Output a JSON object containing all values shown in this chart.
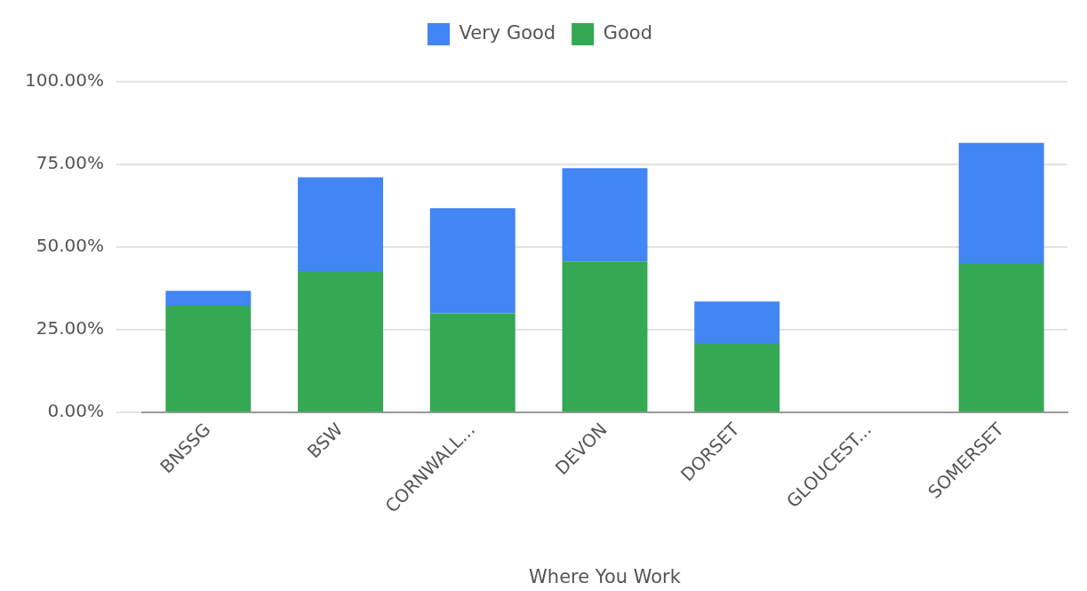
{
  "chart_data": {
    "type": "bar",
    "stacked": true,
    "categories": [
      "BNSSG",
      "BSW",
      "CORNWALL...",
      "DEVON",
      "DORSET",
      "GLOUCEST...",
      "SOMERSET"
    ],
    "series": [
      {
        "name": "Good",
        "color": "#34a853",
        "values": [
          32.3,
          42.8,
          30.0,
          45.7,
          21.0,
          0,
          45.2
        ]
      },
      {
        "name": "Very Good",
        "color": "#4285f4",
        "values": [
          4.5,
          28.3,
          31.8,
          28.2,
          12.6,
          0,
          36.3
        ]
      }
    ],
    "xlabel": "Where You Work",
    "ylim": [
      0,
      100
    ],
    "yticks": [
      {
        "value": 0,
        "label": "0.00%"
      },
      {
        "value": 25,
        "label": "25.00%"
      },
      {
        "value": 50,
        "label": "50.00%"
      },
      {
        "value": 75,
        "label": "75.00%"
      },
      {
        "value": 100,
        "label": "100.00%"
      }
    ],
    "grid": "y",
    "legend": "top"
  }
}
